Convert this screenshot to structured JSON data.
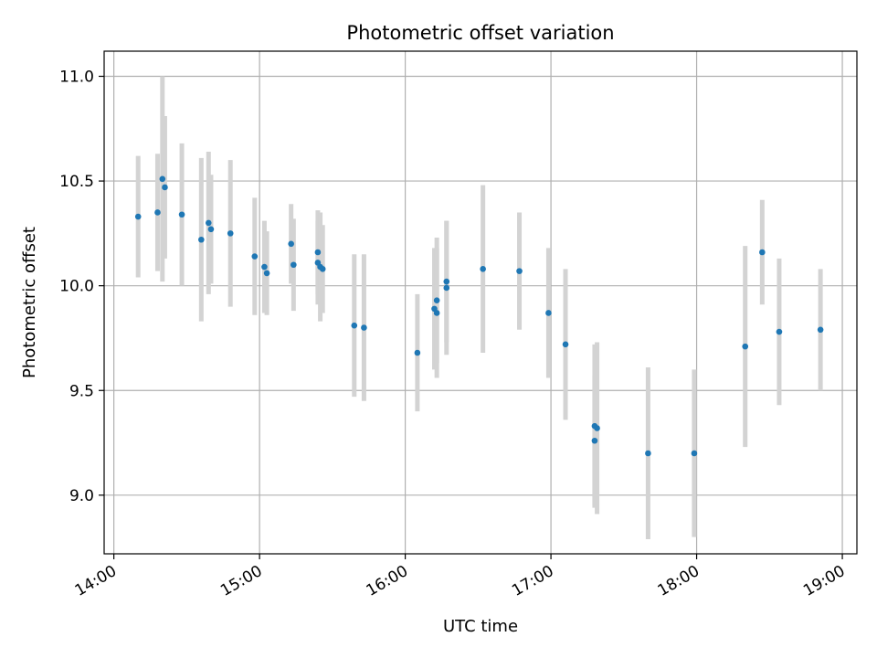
{
  "chart_data": {
    "type": "scatter",
    "title": "Photometric offset variation",
    "xlabel": "UTC time",
    "ylabel": "Photometric offset",
    "x_axis_kind": "time",
    "xlim": [
      "13:56",
      "19:06"
    ],
    "ylim": [
      8.72,
      11.12
    ],
    "x_ticks": [
      "14:00",
      "15:00",
      "16:00",
      "17:00",
      "18:00",
      "19:00"
    ],
    "y_ticks": [
      9.0,
      9.5,
      10.0,
      10.5,
      11.0
    ],
    "y_tick_labels": [
      "9.0",
      "9.5",
      "10.0",
      "10.5",
      "11.0"
    ],
    "grid": true,
    "colors": {
      "point": "#1f77b4",
      "errorbar": "#d3d3d3",
      "grid": "#b0b0b0"
    },
    "points": [
      {
        "x": "14:10",
        "y": 10.33,
        "err": 0.29
      },
      {
        "x": "14:18",
        "y": 10.35,
        "err": 0.28
      },
      {
        "x": "14:20",
        "y": 10.51,
        "err": 0.49
      },
      {
        "x": "14:21",
        "y": 10.47,
        "err": 0.34
      },
      {
        "x": "14:28",
        "y": 10.34,
        "err": 0.34
      },
      {
        "x": "14:36",
        "y": 10.22,
        "err": 0.39
      },
      {
        "x": "14:39",
        "y": 10.3,
        "err": 0.34
      },
      {
        "x": "14:40",
        "y": 10.27,
        "err": 0.26
      },
      {
        "x": "14:48",
        "y": 10.25,
        "err": 0.35
      },
      {
        "x": "14:58",
        "y": 10.14,
        "err": 0.28
      },
      {
        "x": "15:02",
        "y": 10.09,
        "err": 0.22
      },
      {
        "x": "15:03",
        "y": 10.06,
        "err": 0.2
      },
      {
        "x": "15:13",
        "y": 10.2,
        "err": 0.19
      },
      {
        "x": "15:14",
        "y": 10.1,
        "err": 0.22
      },
      {
        "x": "15:24",
        "y": 10.16,
        "err": 0.2
      },
      {
        "x": "15:24",
        "y": 10.11,
        "err": 0.2
      },
      {
        "x": "15:25",
        "y": 10.09,
        "err": 0.26
      },
      {
        "x": "15:26",
        "y": 10.08,
        "err": 0.21
      },
      {
        "x": "15:39",
        "y": 9.81,
        "err": 0.34
      },
      {
        "x": "15:43",
        "y": 9.8,
        "err": 0.35
      },
      {
        "x": "16:05",
        "y": 9.68,
        "err": 0.28
      },
      {
        "x": "16:12",
        "y": 9.89,
        "err": 0.29
      },
      {
        "x": "16:13",
        "y": 9.87,
        "err": 0.31
      },
      {
        "x": "16:13",
        "y": 9.93,
        "err": 0.3
      },
      {
        "x": "16:17",
        "y": 9.99,
        "err": 0.32
      },
      {
        "x": "16:17",
        "y": 10.02,
        "err": 0.29
      },
      {
        "x": "16:32",
        "y": 10.08,
        "err": 0.4
      },
      {
        "x": "16:47",
        "y": 10.07,
        "err": 0.28
      },
      {
        "x": "16:59",
        "y": 9.87,
        "err": 0.31
      },
      {
        "x": "17:06",
        "y": 9.72,
        "err": 0.36
      },
      {
        "x": "17:18",
        "y": 9.33,
        "err": 0.39
      },
      {
        "x": "17:18",
        "y": 9.26,
        "err": 0.31
      },
      {
        "x": "17:19",
        "y": 9.32,
        "err": 0.41
      },
      {
        "x": "17:40",
        "y": 9.2,
        "err": 0.41
      },
      {
        "x": "17:59",
        "y": 9.2,
        "err": 0.4
      },
      {
        "x": "18:20",
        "y": 9.71,
        "err": 0.48
      },
      {
        "x": "18:27",
        "y": 10.16,
        "err": 0.25
      },
      {
        "x": "18:34",
        "y": 9.78,
        "err": 0.35
      },
      {
        "x": "18:51",
        "y": 9.79,
        "err": 0.29
      }
    ]
  }
}
